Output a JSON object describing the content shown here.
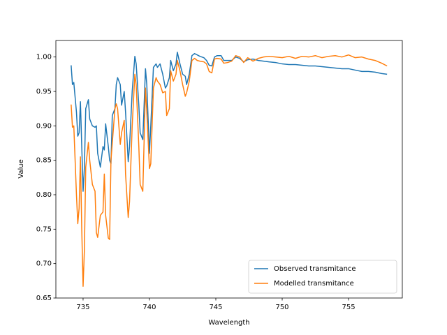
{
  "chart_data": {
    "type": "line",
    "x_label": "Wavelength",
    "y_label": "Value",
    "x": [
      734.1,
      734.2,
      734.3,
      734.5,
      734.6,
      734.7,
      734.8,
      734.9,
      735.0,
      735.1,
      735.2,
      735.4,
      735.5,
      735.7,
      735.9,
      736.0,
      736.1,
      736.3,
      736.5,
      736.6,
      736.7,
      736.9,
      737.0,
      737.1,
      737.2,
      737.4,
      737.5,
      737.6,
      737.8,
      737.9,
      738.1,
      738.2,
      738.4,
      738.5,
      738.7,
      738.9,
      739.0,
      739.2,
      739.3,
      739.5,
      739.7,
      739.8,
      740.0,
      740.1,
      740.3,
      740.5,
      740.6,
      740.8,
      741.0,
      741.2,
      741.3,
      741.5,
      741.6,
      741.8,
      742.0,
      742.1,
      742.3,
      742.5,
      742.7,
      742.8,
      743.0,
      743.2,
      743.4,
      743.6,
      743.8,
      744.1,
      744.3,
      744.5,
      744.7,
      744.9,
      745.1,
      745.4,
      745.6,
      745.9,
      746.2,
      746.5,
      746.8,
      747.1,
      747.4,
      747.8,
      748.2,
      748.6,
      749.0,
      749.5,
      750.0,
      750.5,
      751.0,
      751.5,
      752.0,
      752.5,
      753.0,
      753.5,
      754.0,
      754.5,
      755.0,
      755.5,
      756.0,
      756.5,
      757.0,
      757.5,
      757.9
    ],
    "series": [
      {
        "name": "Observed transmitance",
        "color": "#1f77b4",
        "values": [
          0.988,
          0.96,
          0.963,
          0.92,
          0.885,
          0.89,
          0.935,
          0.87,
          0.805,
          0.84,
          0.925,
          0.938,
          0.91,
          0.9,
          0.898,
          0.9,
          0.86,
          0.84,
          0.87,
          0.865,
          0.903,
          0.87,
          0.85,
          0.845,
          0.915,
          0.925,
          0.96,
          0.97,
          0.96,
          0.93,
          0.95,
          0.92,
          0.848,
          0.87,
          0.95,
          1.001,
          0.99,
          0.93,
          0.89,
          0.88,
          0.983,
          0.96,
          0.86,
          0.9,
          0.985,
          0.99,
          0.985,
          0.99,
          0.975,
          0.955,
          0.958,
          0.97,
          0.995,
          0.98,
          0.99,
          1.007,
          0.99,
          0.975,
          0.972,
          0.96,
          0.975,
          1.002,
          1.005,
          1.003,
          1.001,
          0.999,
          0.995,
          0.988,
          0.987,
          1.0,
          1.002,
          1.002,
          0.995,
          0.995,
          0.995,
          1.0,
          0.998,
          0.993,
          0.996,
          0.997,
          0.995,
          0.994,
          0.993,
          0.992,
          0.99,
          0.989,
          0.989,
          0.988,
          0.987,
          0.987,
          0.986,
          0.985,
          0.984,
          0.983,
          0.983,
          0.981,
          0.979,
          0.979,
          0.978,
          0.976,
          0.975
        ]
      },
      {
        "name": "Modelled transmitance",
        "color": "#ff7f0e",
        "values": [
          0.931,
          0.898,
          0.9,
          0.8,
          0.758,
          0.78,
          0.855,
          0.75,
          0.667,
          0.72,
          0.84,
          0.876,
          0.85,
          0.815,
          0.805,
          0.745,
          0.738,
          0.77,
          0.775,
          0.83,
          0.77,
          0.737,
          0.735,
          0.85,
          0.875,
          0.925,
          0.932,
          0.925,
          0.873,
          0.89,
          0.908,
          0.83,
          0.767,
          0.79,
          0.9,
          0.975,
          0.96,
          0.87,
          0.815,
          0.805,
          0.955,
          0.92,
          0.838,
          0.845,
          0.955,
          0.97,
          0.965,
          0.96,
          0.948,
          0.95,
          0.915,
          0.925,
          0.98,
          0.965,
          0.975,
          0.995,
          0.98,
          0.96,
          0.943,
          0.948,
          0.965,
          0.995,
          0.998,
          0.995,
          0.994,
          0.993,
          0.99,
          0.979,
          0.977,
          0.997,
          0.998,
          0.997,
          0.991,
          0.992,
          0.994,
          1.002,
          1.0,
          0.992,
          0.999,
          0.994,
          0.998,
          1.0,
          1.001,
          1.0,
          0.999,
          1.001,
          0.998,
          1.001,
          1.0,
          1.002,
          0.999,
          1.001,
          1.002,
          1.0,
          1.003,
          0.999,
          1.0,
          0.997,
          0.995,
          0.991,
          0.987
        ]
      }
    ],
    "xlim": [
      732.95,
      759.05
    ],
    "xticks": [
      735,
      740,
      745,
      750,
      755
    ],
    "ylim": [
      0.65,
      1.024
    ],
    "yticks": [
      0.65,
      {
        "value": 0.7,
        "label": "0.70"
      },
      0.75,
      {
        "value": 0.8,
        "label": "0.80"
      },
      0.85,
      {
        "value": 0.9,
        "label": "0.90"
      },
      0.95,
      {
        "value": 1,
        "label": "1.00"
      }
    ],
    "legend": "lower right"
  }
}
